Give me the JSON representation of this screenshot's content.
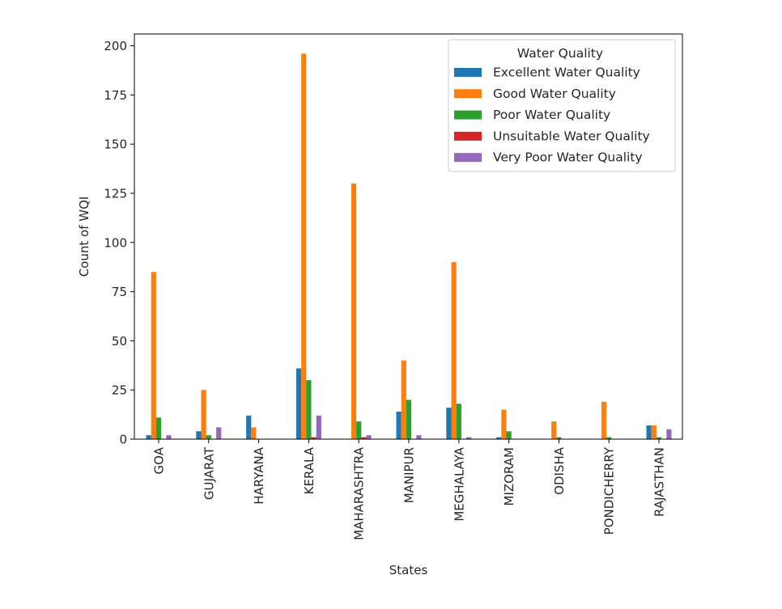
{
  "chart_data": {
    "type": "bar",
    "title": "",
    "xlabel": "States",
    "ylabel": "Count of WQI",
    "ylim": [
      0,
      206
    ],
    "yticks": [
      0,
      25,
      50,
      75,
      100,
      125,
      150,
      175,
      200
    ],
    "grid": false,
    "legend_position": "top-right",
    "categories": [
      "GOA",
      "GUJARAT",
      "HARYANA",
      "KERALA",
      "MAHARASHTRA",
      "MANIPUR",
      "MEGHALAYA",
      "MIZORAM",
      "ODISHA",
      "PONDICHERRY",
      "RAJASTHAN"
    ],
    "legend": {
      "title": "Water Quality"
    },
    "series": [
      {
        "name": "Excellent Water Quality",
        "color": "#1f77b4",
        "values": [
          2,
          4,
          12,
          36,
          0,
          14,
          16,
          1,
          0,
          0,
          7
        ]
      },
      {
        "name": "Good Water Quality",
        "color": "#ff7f0e",
        "values": [
          85,
          25,
          6,
          196,
          130,
          40,
          90,
          15,
          9,
          19,
          7
        ]
      },
      {
        "name": "Poor Water Quality",
        "color": "#2ca02c",
        "values": [
          11,
          2,
          0,
          30,
          9,
          20,
          18,
          4,
          1,
          1,
          1
        ]
      },
      {
        "name": "Unsuitable Water Quality",
        "color": "#d62728",
        "values": [
          0,
          0,
          0,
          1,
          1,
          0,
          0,
          0,
          0,
          0,
          0
        ]
      },
      {
        "name": "Very Poor Water Quality",
        "color": "#9467bd",
        "values": [
          2,
          6,
          0,
          12,
          2,
          2,
          1,
          0,
          0,
          0,
          5
        ]
      }
    ]
  }
}
